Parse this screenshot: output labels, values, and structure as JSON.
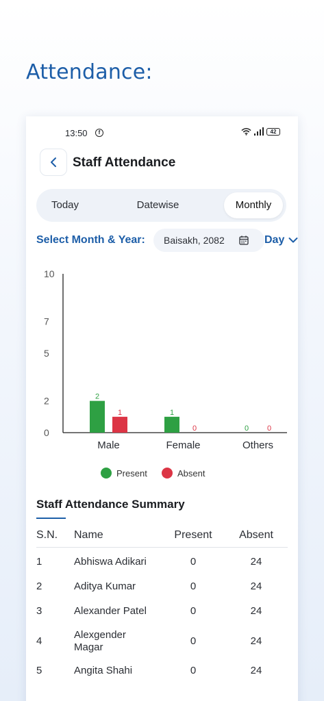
{
  "heading": "Attendance:",
  "status": {
    "time": "13:50",
    "battery": "42"
  },
  "app_bar": {
    "title": "Staff Attendance"
  },
  "tabs": [
    {
      "label": "Today",
      "active": false
    },
    {
      "label": "Datewise",
      "active": false
    },
    {
      "label": "Monthly",
      "active": true
    }
  ],
  "filter": {
    "label": "Select Month & Year:",
    "month_value": "Baisakh, 2082",
    "day_label": "Day"
  },
  "chart_data": {
    "type": "bar",
    "categories": [
      "Male",
      "Female",
      "Others"
    ],
    "series": [
      {
        "name": "Present",
        "values": [
          2,
          1,
          0
        ],
        "color": "#2ea043"
      },
      {
        "name": "Absent",
        "values": [
          1,
          0,
          0
        ],
        "color": "#dc3545"
      }
    ],
    "yticks": [
      "10",
      "7",
      "5",
      "2",
      "0"
    ],
    "ylim": [
      0,
      10
    ],
    "legend_position": "bottom"
  },
  "summary": {
    "title": "Staff Attendance Summary",
    "columns": [
      "S.N.",
      "Name",
      "Present",
      "Absent"
    ],
    "rows": [
      {
        "sn": "1",
        "name": "Abhiswa  Adikari",
        "present": "0",
        "absent": "24"
      },
      {
        "sn": "2",
        "name": "Aditya  Kumar",
        "present": "0",
        "absent": "24"
      },
      {
        "sn": "3",
        "name": "Alexander  Patel",
        "present": "0",
        "absent": "24"
      },
      {
        "sn": "4",
        "name": "Alexgender  Magar",
        "present": "0",
        "absent": "24"
      },
      {
        "sn": "5",
        "name": "Angita  Shahi",
        "present": "0",
        "absent": "24"
      }
    ]
  }
}
